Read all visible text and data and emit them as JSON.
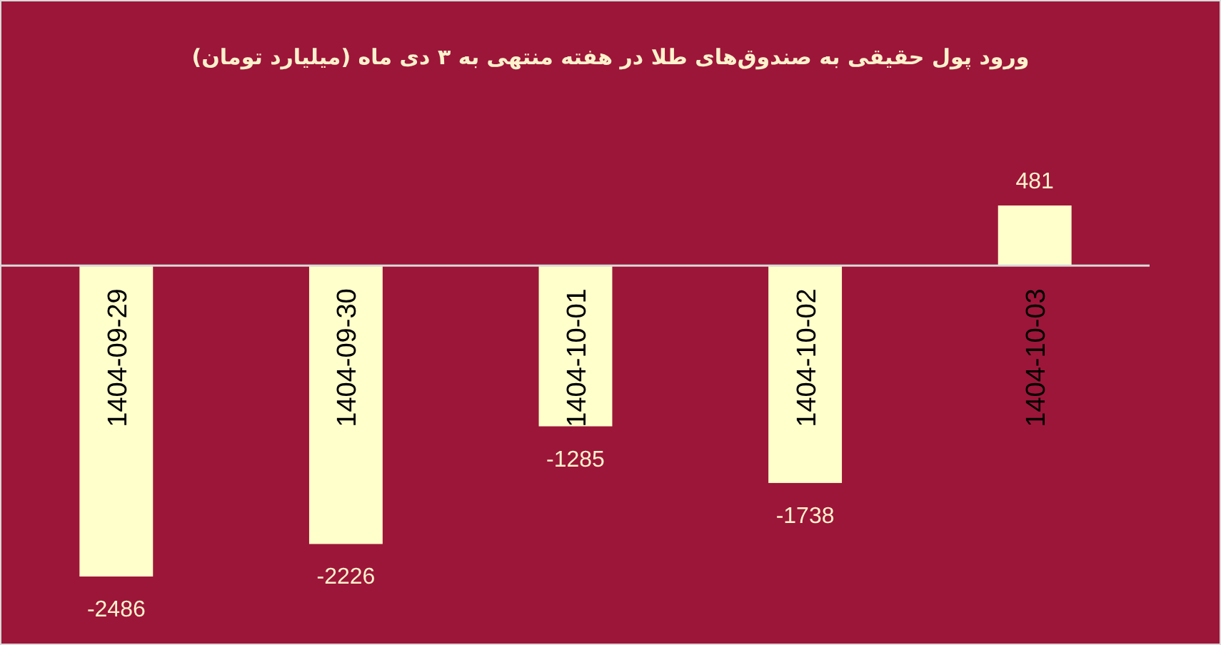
{
  "chart_data": {
    "type": "bar",
    "title": "ورود پول حقیقی به صندوق‌های طلا در هفته منتهی به ۳ دی ماه (میلیارد تومان)",
    "categories": [
      "1404-09-29",
      "1404-09-30",
      "1404-10-01",
      "1404-10-02",
      "1404-10-03"
    ],
    "values": [
      -2486,
      -2226,
      -1285,
      -1738,
      481
    ],
    "color": "#ffffcc",
    "data_labels": true
  }
}
